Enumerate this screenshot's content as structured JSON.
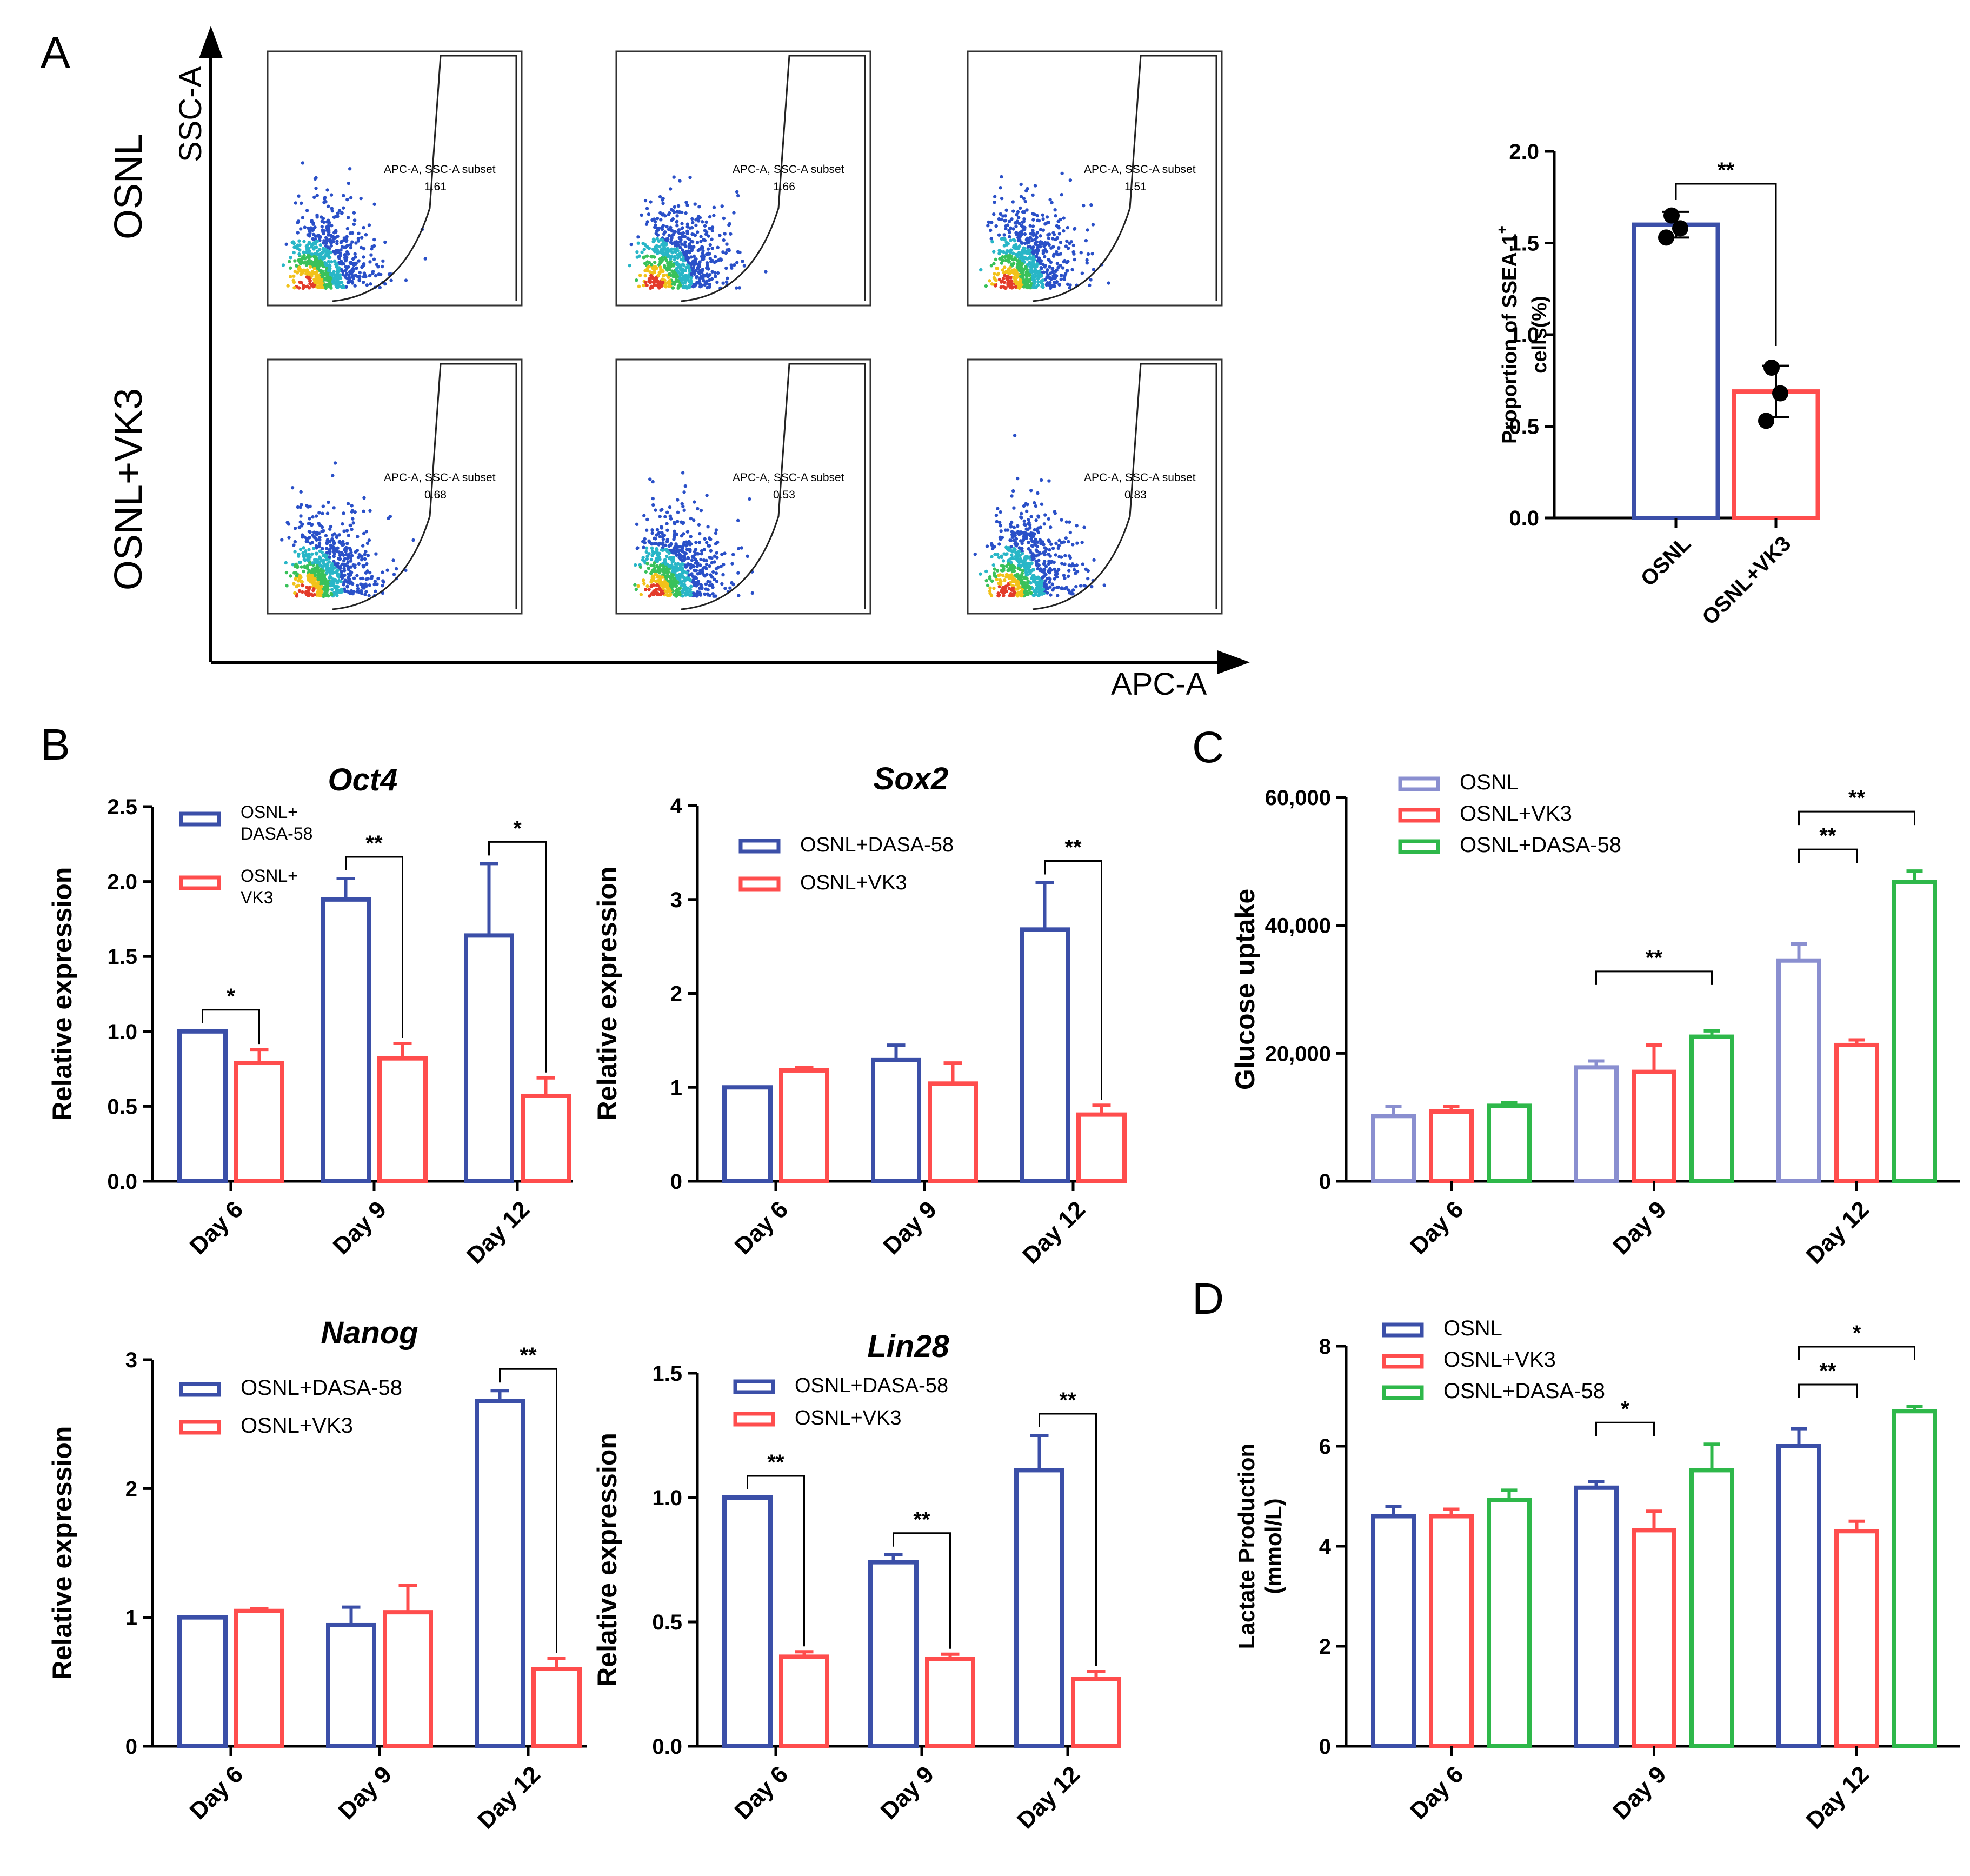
{
  "panel_labels": {
    "A": "A",
    "B": "B",
    "C": "C",
    "D": "D"
  },
  "colors": {
    "osnl": "#8A8FD0",
    "dasa_blue": "#3B4FA8",
    "vk3": "#FF4D4D",
    "dasa_green": "#2EB84A"
  },
  "flow": {
    "y_axis_label": "SSC-A",
    "x_axis_label": "APC-A",
    "row_labels": [
      "OSNL",
      "OSNL+VK3"
    ],
    "gate_name": "APC-A, SSC-A subset",
    "gate_values": [
      [
        "1.61",
        "1.66",
        "1.51"
      ],
      [
        "0.68",
        "0.53",
        "0.83"
      ]
    ]
  },
  "chart_data": [
    {
      "id": "ssea1",
      "type": "bar",
      "title": "",
      "xlabel": "",
      "ylabel_line1": "Proportion of SSEA-1",
      "ylabel_sup": "+",
      "ylabel_line2": "cells(%)",
      "ylim": [
        0,
        2.0
      ],
      "ticks": [
        "0.0",
        "0.5",
        "1.0",
        "1.5",
        "2.0"
      ],
      "tick_values": [
        0,
        0.5,
        1.0,
        1.5,
        2.0
      ],
      "categories": [
        "OSNL",
        "OSNL+VK3"
      ],
      "values": [
        1.6,
        0.69
      ],
      "errors": [
        0.07,
        0.14
      ],
      "points": [
        [
          1.65,
          1.58,
          1.53
        ],
        [
          0.82,
          0.68,
          0.53
        ]
      ],
      "significance": [
        {
          "between": [
            0,
            1
          ],
          "label": "**"
        }
      ]
    },
    {
      "id": "oct4",
      "type": "bar",
      "title": "Oct4",
      "ylabel": "Relative expression",
      "ylim": [
        0,
        2.5
      ],
      "ticks": [
        "0.0",
        "0.5",
        "1.0",
        "1.5",
        "2.0",
        "2.5"
      ],
      "tick_values": [
        0,
        0.5,
        1.0,
        1.5,
        2.0,
        2.5
      ],
      "categories": [
        "Day 6",
        "Day 9",
        "Day 12"
      ],
      "legend": [
        "OSNL+\nDASA-58",
        "OSNL+\nVK3"
      ],
      "series": [
        {
          "name": "OSNL+DASA-58",
          "values": [
            1.0,
            1.88,
            1.64
          ],
          "errors": [
            0,
            0.14,
            0.48
          ]
        },
        {
          "name": "OSNL+VK3",
          "values": [
            0.79,
            0.82,
            0.57
          ],
          "errors": [
            0.09,
            0.1,
            0.12
          ]
        }
      ],
      "significance": [
        {
          "category": 0,
          "label": "*"
        },
        {
          "category": 1,
          "label": "**"
        },
        {
          "category": 2,
          "label": "*"
        }
      ]
    },
    {
      "id": "sox2",
      "type": "bar",
      "title": "Sox2",
      "ylabel": "Relative expression",
      "ylim": [
        0,
        4
      ],
      "ticks": [
        "0",
        "1",
        "2",
        "3",
        "4"
      ],
      "tick_values": [
        0,
        1,
        2,
        3,
        4
      ],
      "categories": [
        "Day 6",
        "Day 9",
        "Day 12"
      ],
      "legend": [
        "OSNL+DASA-58",
        "OSNL+VK3"
      ],
      "series": [
        {
          "name": "OSNL+DASA-58",
          "values": [
            1.0,
            1.29,
            2.68
          ],
          "errors": [
            0,
            0.16,
            0.5
          ]
        },
        {
          "name": "OSNL+VK3",
          "values": [
            1.18,
            1.04,
            0.71
          ],
          "errors": [
            0.03,
            0.22,
            0.1
          ]
        }
      ],
      "significance": [
        {
          "category": 2,
          "label": "**"
        }
      ]
    },
    {
      "id": "nanog",
      "type": "bar",
      "title": "Nanog",
      "ylabel": "Relative expression",
      "ylim": [
        0,
        3
      ],
      "ticks": [
        "0",
        "1",
        "2",
        "3"
      ],
      "tick_values": [
        0,
        1,
        2,
        3
      ],
      "categories": [
        "Day 6",
        "Day 9",
        "Day 12"
      ],
      "legend": [
        "OSNL+DASA-58",
        "OSNL+VK3"
      ],
      "series": [
        {
          "name": "OSNL+DASA-58",
          "values": [
            1.0,
            0.94,
            2.68
          ],
          "errors": [
            0,
            0.14,
            0.08
          ]
        },
        {
          "name": "OSNL+VK3",
          "values": [
            1.05,
            1.04,
            0.6
          ],
          "errors": [
            0.02,
            0.21,
            0.08
          ]
        }
      ],
      "significance": [
        {
          "category": 2,
          "label": "**"
        }
      ]
    },
    {
      "id": "lin28",
      "type": "bar",
      "title": "Lin28",
      "ylabel": "Relative expression",
      "ylim": [
        0,
        1.5
      ],
      "ticks": [
        "0.0",
        "0.5",
        "1.0",
        "1.5"
      ],
      "tick_values": [
        0,
        0.5,
        1.0,
        1.5
      ],
      "categories": [
        "Day 6",
        "Day 9",
        "Day 12"
      ],
      "legend": [
        "OSNL+DASA-58",
        "OSNL+VK3"
      ],
      "series": [
        {
          "name": "OSNL+DASA-58",
          "values": [
            1.0,
            0.74,
            1.11
          ],
          "errors": [
            0,
            0.03,
            0.14
          ]
        },
        {
          "name": "OSNL+VK3",
          "values": [
            0.36,
            0.35,
            0.27
          ],
          "errors": [
            0.02,
            0.02,
            0.03
          ]
        }
      ],
      "significance": [
        {
          "category": 0,
          "label": "**"
        },
        {
          "category": 1,
          "label": "**"
        },
        {
          "category": 2,
          "label": "**"
        }
      ]
    },
    {
      "id": "glucose",
      "type": "bar",
      "title": "",
      "ylabel": "Glucose uptake",
      "ylim": [
        0,
        60000
      ],
      "ticks": [
        "0",
        "20,000",
        "40,000",
        "60,000"
      ],
      "tick_values": [
        0,
        20000,
        40000,
        60000
      ],
      "categories": [
        "Day 6",
        "Day 9",
        "Day 12"
      ],
      "legend": [
        "OSNL",
        "OSNL+VK3",
        "OSNL+DASA-58"
      ],
      "series": [
        {
          "name": "OSNL",
          "values": [
            10200,
            17800,
            34500
          ],
          "errors": [
            1500,
            1000,
            2600
          ]
        },
        {
          "name": "OSNL+VK3",
          "values": [
            10900,
            17100,
            21300
          ],
          "errors": [
            800,
            4200,
            800
          ]
        },
        {
          "name": "OSNL+DASA-58",
          "values": [
            11800,
            22600,
            46800
          ],
          "errors": [
            500,
            900,
            1700
          ]
        }
      ],
      "significance": [
        {
          "category": 1,
          "between": [
            0,
            2
          ],
          "label": "**"
        },
        {
          "category": 2,
          "between": [
            0,
            1
          ],
          "label": "**"
        },
        {
          "category": 2,
          "between": [
            0,
            2
          ],
          "label": "**"
        }
      ]
    },
    {
      "id": "lactate",
      "type": "bar",
      "title": "",
      "ylabel": "Lactate Production",
      "ylabel2": "(mmol/L)",
      "ylim": [
        0,
        8
      ],
      "ticks": [
        "0",
        "2",
        "4",
        "6",
        "8"
      ],
      "tick_values": [
        0,
        2,
        4,
        6,
        8
      ],
      "categories": [
        "Day 6",
        "Day 9",
        "Day 12"
      ],
      "legend": [
        "OSNL",
        "OSNL+VK3",
        "OSNL+DASA-58"
      ],
      "series": [
        {
          "name": "OSNL",
          "values": [
            4.6,
            5.17,
            6.0
          ],
          "errors": [
            0.2,
            0.12,
            0.35
          ]
        },
        {
          "name": "OSNL+VK3",
          "values": [
            4.6,
            4.32,
            4.3
          ],
          "errors": [
            0.14,
            0.38,
            0.2
          ]
        },
        {
          "name": "OSNL+DASA-58",
          "values": [
            4.92,
            5.52,
            6.7
          ],
          "errors": [
            0.2,
            0.52,
            0.1
          ]
        }
      ],
      "significance": [
        {
          "category": 1,
          "between": [
            0,
            1
          ],
          "label": "*"
        },
        {
          "category": 2,
          "between": [
            0,
            1
          ],
          "label": "**"
        },
        {
          "category": 2,
          "between": [
            0,
            2
          ],
          "label": "*"
        }
      ]
    }
  ]
}
